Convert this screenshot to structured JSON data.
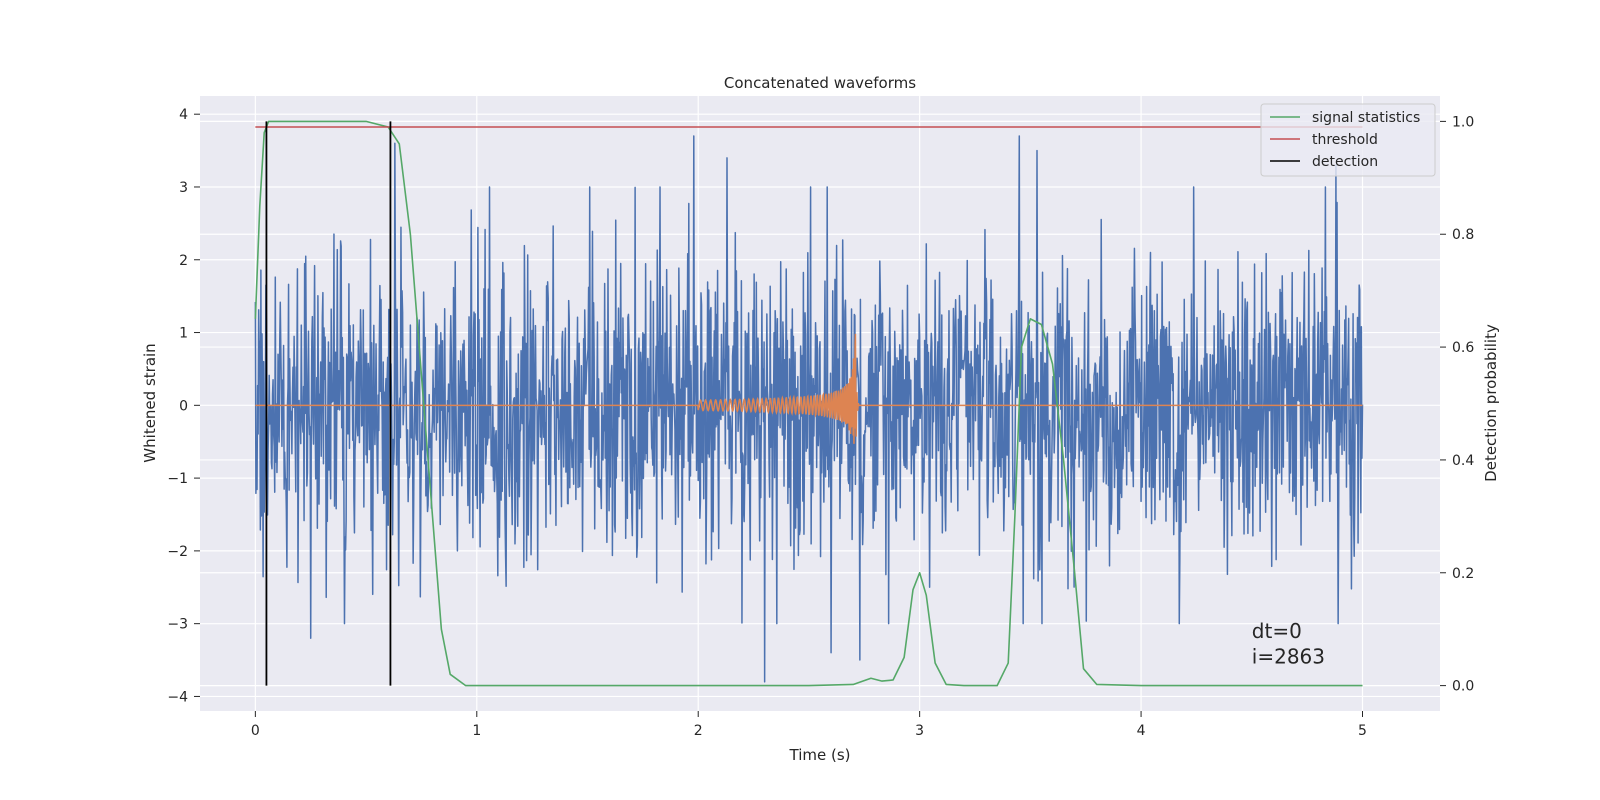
{
  "chart_data": {
    "type": "line",
    "title": "Concatenated waveforms",
    "xlabel": "Time (s)",
    "ylabel": "Whitened strain",
    "y2label": "Detection probability",
    "xlim": [
      -0.25,
      5.35
    ],
    "ylim": [
      -4.2,
      4.25
    ],
    "y2lim": [
      -0.045,
      1.045
    ],
    "xticks": [
      0,
      1,
      2,
      3,
      4,
      5
    ],
    "yticks": [
      -4,
      -3,
      -2,
      -1,
      0,
      1,
      2,
      3,
      4
    ],
    "y2ticks": [
      0.0,
      0.2,
      0.4,
      0.6,
      0.8,
      1.0
    ],
    "y2ticklabels": [
      "0.0",
      "0.2",
      "0.4",
      "0.6",
      "0.8",
      "1.0"
    ],
    "grid": true,
    "legend_position": "top-right",
    "legend": [
      {
        "label": "signal statistics",
        "color": "#55a868"
      },
      {
        "label": "threshold",
        "color": "#c44e52"
      },
      {
        "label": "detection",
        "color": "#000000"
      }
    ],
    "series": [
      {
        "description": "whitened strain noise (dense random trace)",
        "axis": "left",
        "color": "#4c72b0",
        "x_range": [
          0,
          5
        ],
        "sample_count": 2000,
        "typical_amplitude": 1.0,
        "peaks_high": [
          [
            0.63,
            3.6
          ],
          [
            1.98,
            3.7
          ],
          [
            2.13,
            3.4
          ],
          [
            3.45,
            3.7
          ],
          [
            3.53,
            3.5
          ],
          [
            4.88,
            3.3
          ]
        ],
        "peaks_low": [
          [
            2.3,
            -3.8
          ],
          [
            2.6,
            -3.4
          ],
          [
            2.73,
            -3.5
          ],
          [
            0.25,
            -3.2
          ]
        ]
      },
      {
        "description": "injected chirp waveform",
        "axis": "left",
        "color": "#dd8452",
        "x_range": [
          0,
          5
        ],
        "chirp_start": 2.0,
        "chirp_merger": 2.71,
        "peak_amplitude": 1.0
      },
      {
        "name": "signal statistics",
        "axis": "right",
        "color": "#55a868",
        "x": [
          0.0,
          0.02,
          0.04,
          0.06,
          0.1,
          0.3,
          0.5,
          0.6,
          0.65,
          0.7,
          0.75,
          0.8,
          0.84,
          0.88,
          0.95,
          1.5,
          2.5,
          2.7,
          2.78,
          2.83,
          2.88,
          2.93,
          2.97,
          3.0,
          3.03,
          3.07,
          3.12,
          3.2,
          3.35,
          3.4,
          3.43,
          3.46,
          3.5,
          3.55,
          3.6,
          3.65,
          3.7,
          3.74,
          3.8,
          4.0,
          4.5,
          5.0
        ],
        "y": [
          0.65,
          0.85,
          0.98,
          1.0,
          1.0,
          1.0,
          1.0,
          0.99,
          0.96,
          0.8,
          0.55,
          0.3,
          0.1,
          0.02,
          0.0,
          0.0,
          0.0,
          0.002,
          0.013,
          0.008,
          0.01,
          0.05,
          0.17,
          0.2,
          0.16,
          0.04,
          0.002,
          0.0,
          0.0,
          0.04,
          0.3,
          0.6,
          0.65,
          0.64,
          0.57,
          0.4,
          0.2,
          0.03,
          0.002,
          0.0,
          0.0,
          0.0
        ]
      },
      {
        "name": "threshold",
        "axis": "right",
        "color": "#c44e52",
        "x": [
          0,
          5
        ],
        "y": [
          0.99,
          0.99
        ]
      },
      {
        "name": "detection",
        "axis": "right",
        "color": "#000000",
        "type": "vlines",
        "x": [
          0.05,
          0.61
        ],
        "y_range": [
          0,
          1
        ]
      }
    ],
    "annotations": [
      {
        "text": "dt=0",
        "x": 4.5,
        "y": -3.2
      },
      {
        "text": "i=2863",
        "x": 4.5,
        "y": -3.55
      }
    ]
  }
}
